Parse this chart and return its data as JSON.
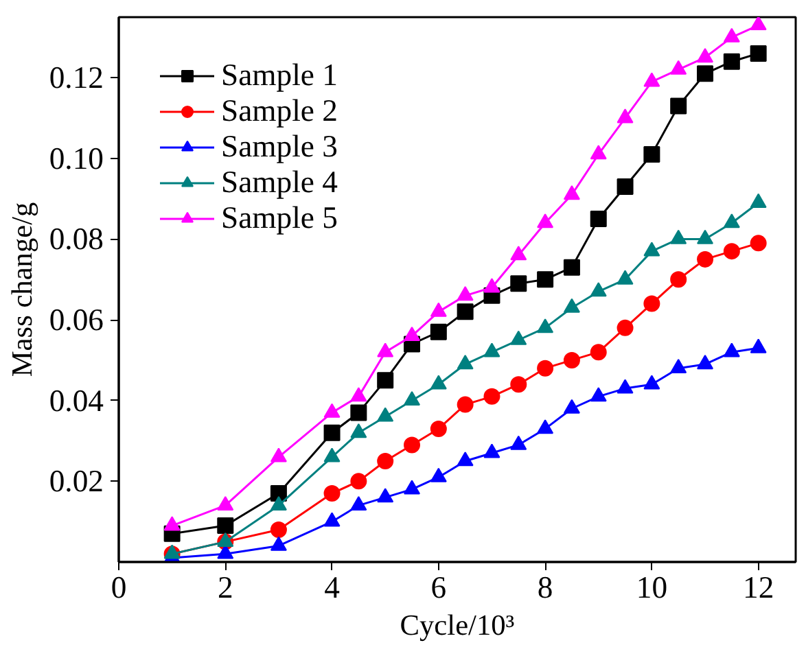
{
  "chart_data": {
    "type": "line",
    "xlabel": "Cycle/10³",
    "ylabel": "Mass change/g",
    "x": [
      1,
      2,
      3,
      4,
      4.5,
      5,
      5.5,
      6,
      6.5,
      7,
      7.5,
      8,
      8.5,
      9,
      9.5,
      10,
      10.5,
      11,
      11.5,
      12
    ],
    "series": [
      {
        "name": "Sample 1",
        "color": "#000000",
        "marker": "square",
        "values": [
          0.007,
          0.009,
          0.017,
          0.032,
          0.037,
          0.045,
          0.054,
          0.057,
          0.062,
          0.066,
          0.069,
          0.07,
          0.073,
          0.085,
          0.093,
          0.101,
          0.113,
          0.121,
          0.124,
          0.126
        ]
      },
      {
        "name": "Sample 2",
        "color": "#ff0000",
        "marker": "circle",
        "values": [
          0.002,
          0.005,
          0.008,
          0.017,
          0.02,
          0.025,
          0.029,
          0.033,
          0.039,
          0.041,
          0.044,
          0.048,
          0.05,
          0.052,
          0.058,
          0.064,
          0.07,
          0.075,
          0.077,
          0.079
        ]
      },
      {
        "name": "Sample 3",
        "color": "#0000ff",
        "marker": "triangle",
        "values": [
          0.001,
          0.002,
          0.004,
          0.01,
          0.014,
          0.016,
          0.018,
          0.021,
          0.025,
          0.027,
          0.029,
          0.033,
          0.038,
          0.041,
          0.043,
          0.044,
          0.048,
          0.049,
          0.052,
          0.053
        ]
      },
      {
        "name": "Sample 4",
        "color": "#008080",
        "marker": "triangle",
        "values": [
          0.002,
          0.005,
          0.014,
          0.026,
          0.032,
          0.036,
          0.04,
          0.044,
          0.049,
          0.052,
          0.055,
          0.058,
          0.063,
          0.067,
          0.07,
          0.077,
          0.08,
          0.08,
          0.084,
          0.089
        ]
      },
      {
        "name": "Sample 5",
        "color": "#ff00ff",
        "marker": "triangle",
        "values": [
          0.009,
          0.014,
          0.026,
          0.037,
          0.041,
          0.052,
          0.056,
          0.062,
          0.066,
          0.068,
          0.076,
          0.084,
          0.091,
          0.101,
          0.11,
          0.119,
          0.122,
          0.125,
          0.13,
          0.133
        ]
      }
    ],
    "xlim": [
      0,
      12.7
    ],
    "ylim": [
      0,
      0.135
    ],
    "xticks": [
      0,
      2,
      4,
      6,
      8,
      10,
      12
    ],
    "yticks": [
      {
        "value": 0.02,
        "label": "0.02"
      },
      {
        "value": 0.04,
        "label": "0.04"
      },
      {
        "value": 0.06,
        "label": "0.06"
      },
      {
        "value": 0.08,
        "label": "0.08"
      },
      {
        "value": 0.1,
        "label": "0.10"
      },
      {
        "value": 0.12,
        "label": "0.12"
      }
    ],
    "legend": "top left",
    "grid": false,
    "line_style": "solid"
  }
}
